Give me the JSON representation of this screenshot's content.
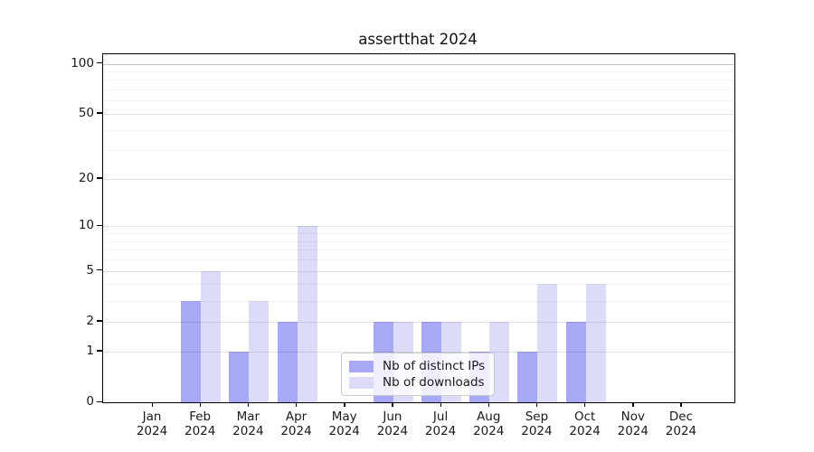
{
  "title": "assertthat 2024",
  "legend": {
    "items": [
      {
        "label": "Nb of distinct IPs",
        "color": "#a8a8f5"
      },
      {
        "label": "Nb of downloads",
        "color": "#dcdcf8"
      }
    ]
  },
  "chart_data": {
    "type": "bar",
    "title": "assertthat 2024",
    "categories": [
      "Jan",
      "Feb",
      "Mar",
      "Apr",
      "May",
      "Jun",
      "Jul",
      "Aug",
      "Sep",
      "Oct",
      "Nov",
      "Dec"
    ],
    "year": "2024",
    "series": [
      {
        "name": "Nb of distinct IPs",
        "color": "#a8a8f5",
        "values": [
          0,
          3,
          1,
          2,
          0,
          2,
          2,
          1,
          1,
          2,
          0,
          0
        ]
      },
      {
        "name": "Nb of downloads",
        "color": "#dcdcf8",
        "values": [
          0,
          5,
          3,
          10,
          0,
          2,
          2,
          2,
          4,
          4,
          0,
          0
        ]
      }
    ],
    "xlabel": "",
    "ylabel": "",
    "yscale": "log1p",
    "ylim": [
      0,
      114
    ],
    "yticks": [
      0,
      1,
      2,
      5,
      10,
      20,
      50,
      100
    ],
    "minor_gridlines": [
      3,
      4,
      6,
      7,
      8,
      9,
      30,
      40,
      60,
      70,
      80,
      90
    ],
    "grid": true,
    "legend_position": "lower center"
  }
}
